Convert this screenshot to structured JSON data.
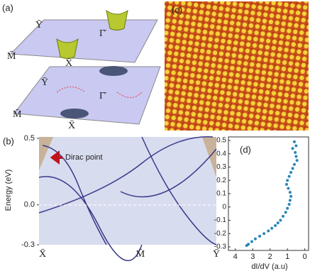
{
  "panels": {
    "a": {
      "label": "(a)",
      "top": {
        "y": "Ȳ",
        "gamma": "Γ̄",
        "m": "M̄",
        "x": "X̄"
      },
      "bottom": {
        "y": "Ȳ",
        "gamma": "Γ̄",
        "m": "M̄",
        "x": "X̄"
      }
    },
    "c": {
      "label": "(c)"
    }
  },
  "chart_data": [
    {
      "type": "band",
      "panel_label": "(b)",
      "y_label": "Energy (eV)",
      "annotation": "Dirac point",
      "categories": [
        "X̄",
        "M̄",
        "Ȳ"
      ],
      "ylim": [
        -0.3,
        0.5
      ],
      "yticks": [
        0.5,
        {
          "value": 0,
          "label": "0.0"
        },
        -0.3
      ]
    },
    {
      "type": "scatter",
      "panel_label": "(d)",
      "x_label": "dI/dV (a.u)",
      "color": "#2a86b8",
      "xlim": [
        4.4,
        -0.3
      ],
      "ylim": [
        -0.3,
        0.5
      ],
      "xticks": [
        4,
        3,
        2,
        1,
        0
      ],
      "yticks": [
        0.5,
        0.4,
        0.3,
        0.2,
        0.1,
        0,
        -0.1,
        -0.2,
        -0.3
      ],
      "x": [
        0.6,
        0.5,
        0.7,
        0.55,
        0.5,
        0.45,
        0.6,
        0.7,
        0.8,
        0.9,
        1.0,
        1.05,
        0.95,
        0.85,
        0.8,
        0.85,
        0.9,
        1.0,
        1.1,
        1.25,
        1.4,
        1.55,
        1.7,
        1.9,
        2.1,
        2.35,
        2.6,
        2.85,
        3.05,
        3.25,
        3.35
      ],
      "y": [
        0.49,
        0.46,
        0.44,
        0.41,
        0.38,
        0.35,
        0.32,
        0.29,
        0.26,
        0.23,
        0.2,
        0.17,
        0.14,
        0.11,
        0.08,
        0.05,
        0.02,
        -0.01,
        -0.04,
        -0.07,
        -0.1,
        -0.12,
        -0.14,
        -0.16,
        -0.18,
        -0.2,
        -0.22,
        -0.24,
        -0.26,
        -0.28,
        -0.29
      ]
    }
  ]
}
